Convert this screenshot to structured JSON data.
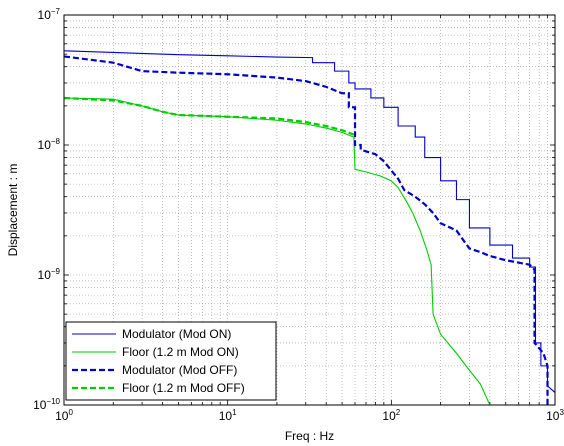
{
  "chart_data": {
    "type": "line",
    "title": "",
    "xlabel": "Freq : Hz",
    "ylabel": "Displacement : m",
    "xscale": "log",
    "yscale": "log",
    "xlim": [
      1,
      1000
    ],
    "ylim": [
      1e-10,
      1e-07
    ],
    "grid": true,
    "legend_position": "bottom-left",
    "x_ticks": [
      {
        "value": 1,
        "base": "10",
        "exp": "0"
      },
      {
        "value": 10,
        "base": "10",
        "exp": "1"
      },
      {
        "value": 100,
        "base": "10",
        "exp": "2"
      },
      {
        "value": 1000,
        "base": "10",
        "exp": "3"
      }
    ],
    "y_ticks": [
      {
        "value": 1e-10,
        "base": "10",
        "exp": "−10"
      },
      {
        "value": 1e-09,
        "base": "10",
        "exp": "−9"
      },
      {
        "value": 1e-08,
        "base": "10",
        "exp": "−8"
      },
      {
        "value": 1e-07,
        "base": "10",
        "exp": "−7"
      }
    ],
    "series": [
      {
        "name": "Modulator (Mod ON)",
        "color": "#0000cc",
        "style": "solid",
        "x": [
          1,
          2,
          5,
          10,
          20,
          33,
          33,
          45,
          45,
          55,
          55,
          60,
          60,
          75,
          75,
          90,
          90,
          110,
          110,
          140,
          140,
          160,
          160,
          200,
          200,
          250,
          250,
          300,
          300,
          400,
          400,
          550,
          550,
          700,
          700,
          760,
          760,
          820,
          820,
          900,
          900,
          1000
        ],
        "y": [
          5.3e-08,
          5.15e-08,
          4.95e-08,
          4.85e-08,
          4.75e-08,
          4.7e-08,
          4.3e-08,
          4.3e-08,
          3.7e-08,
          3.7e-08,
          3e-08,
          3e-08,
          2.7e-08,
          2.7e-08,
          2.3e-08,
          2.3e-08,
          1.95e-08,
          1.95e-08,
          1.4e-08,
          1.4e-08,
          1.15e-08,
          1.15e-08,
          8e-09,
          8e-09,
          5.3e-09,
          5.3e-09,
          3.8e-09,
          3.8e-09,
          2.3e-09,
          2.3e-09,
          1.7e-09,
          1.7e-09,
          1.35e-09,
          1.35e-09,
          1.15e-09,
          1.15e-09,
          3e-10,
          3e-10,
          2e-10,
          2e-10,
          1.4e-10,
          1.25e-10
        ]
      },
      {
        "name": "Floor (1.2 m Mod ON)",
        "color": "#00cc00",
        "style": "solid",
        "x": [
          1,
          2,
          3,
          4,
          5,
          10,
          20,
          30,
          40,
          50,
          59,
          60,
          70,
          85,
          100,
          110,
          125,
          135,
          150,
          165,
          175,
          180,
          200,
          250,
          300,
          350,
          400
        ],
        "y": [
          2.3e-08,
          2.25e-08,
          2e-08,
          1.8e-08,
          1.7e-08,
          1.65e-08,
          1.55e-08,
          1.45e-08,
          1.35e-08,
          1.25e-08,
          1.15e-08,
          6.5e-09,
          6.2e-09,
          5.8e-09,
          5.3e-09,
          4.7e-09,
          3.6e-09,
          3e-09,
          2.2e-09,
          1.55e-09,
          1.2e-09,
          5e-10,
          3.5e-10,
          2.5e-10,
          1.85e-10,
          1.45e-10,
          1e-10
        ]
      },
      {
        "name": "Modulator (Mod OFF)",
        "color": "#0000cc",
        "style": "dashed",
        "x": [
          1,
          2,
          3,
          5,
          10,
          20,
          30,
          40,
          50,
          55,
          55,
          60,
          60,
          65,
          65,
          80,
          90,
          110,
          120,
          140,
          160,
          180,
          200,
          250,
          280,
          300,
          350,
          400,
          500,
          700,
          750,
          750,
          850,
          900,
          900
        ],
        "y": [
          4.8e-08,
          4.3e-08,
          3.7e-08,
          3.6e-08,
          3.5e-08,
          3.3e-08,
          3.1e-08,
          2.8e-08,
          2.5e-08,
          2.5e-08,
          1.95e-08,
          1.95e-08,
          1e-08,
          1e-08,
          9.2e-09,
          8.5e-09,
          7.5e-09,
          5.5e-09,
          4.5e-09,
          4e-09,
          3.5e-09,
          3e-09,
          2.5e-09,
          2.2e-09,
          1.8e-09,
          1.6e-09,
          1.5e-09,
          1.4e-09,
          1.3e-09,
          1.2e-09,
          1.1e-09,
          3e-10,
          2.5e-10,
          2e-10,
          1e-10
        ]
      },
      {
        "name": "Floor (1.2 m Mod OFF)",
        "color": "#00cc00",
        "style": "dashed",
        "x": [
          1,
          2,
          3,
          4,
          5,
          10,
          20,
          30,
          40,
          50,
          59
        ],
        "y": [
          2.3e-08,
          2.2e-08,
          2e-08,
          1.8e-08,
          1.7e-08,
          1.65e-08,
          1.6e-08,
          1.5e-08,
          1.4e-08,
          1.3e-08,
          1.2e-08
        ]
      }
    ]
  }
}
